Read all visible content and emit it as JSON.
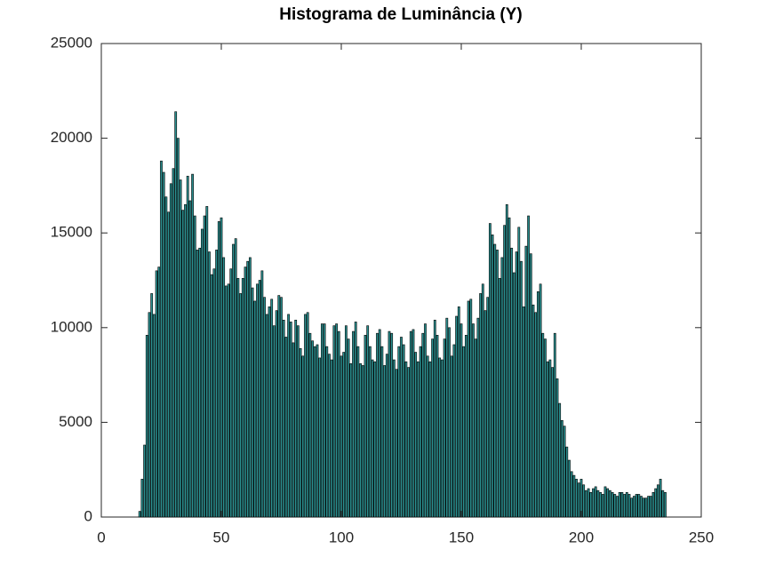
{
  "chart_data": {
    "type": "bar",
    "title": "Histograma de Luminância (Y)",
    "x": [
      16,
      17,
      18,
      19,
      20,
      21,
      22,
      23,
      24,
      25,
      26,
      27,
      28,
      29,
      30,
      31,
      32,
      33,
      34,
      35,
      36,
      37,
      38,
      39,
      40,
      41,
      42,
      43,
      44,
      45,
      46,
      47,
      48,
      49,
      50,
      51,
      52,
      53,
      54,
      55,
      56,
      57,
      58,
      59,
      60,
      61,
      62,
      63,
      64,
      65,
      66,
      67,
      68,
      69,
      70,
      71,
      72,
      73,
      74,
      75,
      76,
      77,
      78,
      79,
      80,
      81,
      82,
      83,
      84,
      85,
      86,
      87,
      88,
      89,
      90,
      91,
      92,
      93,
      94,
      95,
      96,
      97,
      98,
      99,
      100,
      101,
      102,
      103,
      104,
      105,
      106,
      107,
      108,
      109,
      110,
      111,
      112,
      113,
      114,
      115,
      116,
      117,
      118,
      119,
      120,
      121,
      122,
      123,
      124,
      125,
      126,
      127,
      128,
      129,
      130,
      131,
      132,
      133,
      134,
      135,
      136,
      137,
      138,
      139,
      140,
      141,
      142,
      143,
      144,
      145,
      146,
      147,
      148,
      149,
      150,
      151,
      152,
      153,
      154,
      155,
      156,
      157,
      158,
      159,
      160,
      161,
      162,
      163,
      164,
      165,
      166,
      167,
      168,
      169,
      170,
      171,
      172,
      173,
      174,
      175,
      176,
      177,
      178,
      179,
      180,
      181,
      182,
      183,
      184,
      185,
      186,
      187,
      188,
      189,
      190,
      191,
      192,
      193,
      194,
      195,
      196,
      197,
      198,
      199,
      200,
      201,
      202,
      203,
      204,
      205,
      206,
      207,
      208,
      209,
      210,
      211,
      212,
      213,
      214,
      215,
      216,
      217,
      218,
      219,
      220,
      221,
      222,
      223,
      224,
      225,
      226,
      227,
      228,
      229,
      230,
      231,
      232,
      233,
      234,
      235
    ],
    "values": [
      300,
      2000,
      3800,
      9600,
      10800,
      11800,
      10700,
      13000,
      13200,
      18800,
      18200,
      16900,
      16100,
      17600,
      18400,
      21400,
      20000,
      17800,
      16200,
      16500,
      18000,
      16700,
      18100,
      15900,
      14100,
      14200,
      15200,
      15900,
      16400,
      14000,
      12800,
      13100,
      14100,
      15600,
      15800,
      13700,
      12200,
      12300,
      13100,
      14400,
      14700,
      12600,
      11800,
      12600,
      13200,
      13500,
      13700,
      12100,
      11400,
      12300,
      12500,
      13000,
      11600,
      10700,
      11100,
      11500,
      10100,
      10900,
      11700,
      11600,
      10400,
      9500,
      10700,
      10300,
      9200,
      10400,
      10100,
      8900,
      8500,
      10700,
      10800,
      9700,
      9300,
      9000,
      9100,
      8400,
      10200,
      10200,
      9000,
      8600,
      8300,
      10100,
      10200,
      9800,
      8500,
      8700,
      10100,
      9400,
      8100,
      9800,
      10300,
      9000,
      8100,
      8000,
      9600,
      10100,
      9000,
      8300,
      8200,
      9700,
      9900,
      9000,
      8000,
      8600,
      9800,
      9700,
      8300,
      7800,
      9000,
      9500,
      9100,
      8200,
      7900,
      9800,
      9900,
      8700,
      8200,
      9000,
      9700,
      10200,
      8500,
      8200,
      9400,
      10400,
      9600,
      8400,
      8300,
      9400,
      10500,
      10000,
      8500,
      9100,
      10600,
      11100,
      10200,
      9000,
      9600,
      11400,
      11500,
      10200,
      9400,
      10500,
      11800,
      12300,
      10900,
      11600,
      15500,
      14900,
      14400,
      14100,
      12600,
      13700,
      15400,
      16500,
      15800,
      14200,
      12900,
      14000,
      15300,
      13500,
      11100,
      14300,
      15900,
      13900,
      11200,
      10800,
      11900,
      12300,
      9700,
      9400,
      8200,
      8300,
      7900,
      9700,
      7300,
      6000,
      5100,
      4800,
      3700,
      3000,
      2400,
      2200,
      2000,
      1800,
      2000,
      1700,
      1400,
      1500,
      1300,
      1500,
      1600,
      1400,
      1300,
      1200,
      1600,
      1500,
      1400,
      1300,
      1200,
      1100,
      1300,
      1300,
      1200,
      1300,
      1200,
      1000,
      1100,
      1200,
      1200,
      1100,
      1000,
      1000,
      1100,
      1100,
      1300,
      1500,
      1700,
      2000,
      1400,
      1300
    ],
    "color": "#2a8f8f",
    "edgecolor": "#000000",
    "xlim": [
      0,
      250
    ],
    "xticks": [
      0,
      50,
      100,
      150,
      200,
      250
    ],
    "ylim": [
      0,
      25000
    ],
    "yticks": [
      0,
      5000,
      10000,
      15000,
      20000,
      25000
    ],
    "grid": false
  }
}
